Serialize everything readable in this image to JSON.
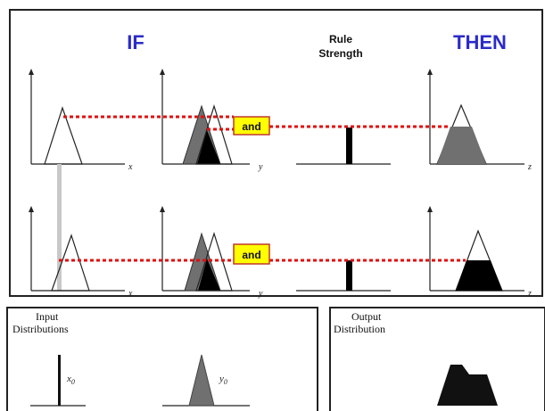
{
  "headers": {
    "if": "IF",
    "rule_strength_line1": "Rule",
    "rule_strength_line2": "Strength",
    "then": "THEN"
  },
  "operators": {
    "row1": "and",
    "row2": "and"
  },
  "bottom_panels": {
    "input": {
      "title_line1": "Input",
      "title_line2": "Distributions",
      "x_symbol": "x",
      "x_subscript": "0",
      "y_symbol": "y",
      "y_subscript": "0"
    },
    "output": {
      "title_line1": "Output",
      "title_line2": "Distribution"
    }
  },
  "axis_labels": {
    "x": "x",
    "y": "y",
    "z": "z"
  },
  "colors": {
    "header_blue": "#2b2bc8",
    "connector_red": "#e01010",
    "operator_fill": "#ffff00",
    "operator_border": "#c0392b",
    "membership_gray": "#707070",
    "membership_black": "#000000",
    "guide_gray": "#c8c8c8"
  }
}
